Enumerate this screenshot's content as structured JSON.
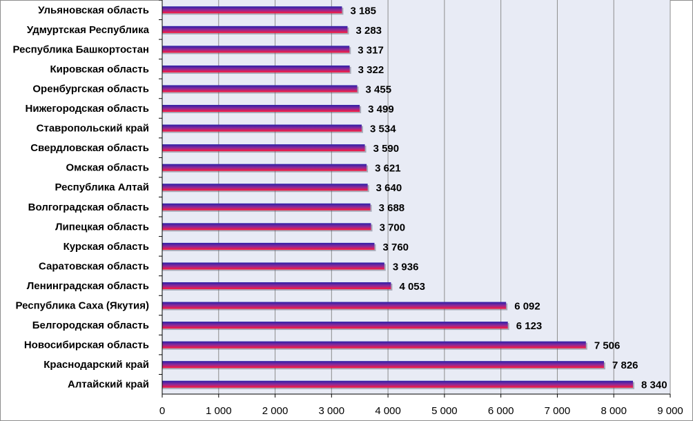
{
  "chart_data": {
    "type": "bar",
    "orientation": "horizontal",
    "categories": [
      "Ульяновская область",
      "Удмуртская Республика",
      "Республика Башкортостан",
      "Кировская область",
      "Оренбургская область",
      "Нижегородская область",
      "Ставропольский край",
      "Свердловская область",
      "Омская область",
      "Республика Алтай",
      "Волгоградская область",
      "Липецкая область",
      "Курская область",
      "Саратовская область",
      "Ленинградская область",
      "Республика Саха (Якутия)",
      "Белгородская область",
      "Новосибирская область",
      "Краснодарский край",
      "Алтайский край"
    ],
    "values": [
      3185,
      3283,
      3317,
      3322,
      3455,
      3499,
      3534,
      3590,
      3621,
      3640,
      3688,
      3700,
      3760,
      3936,
      4053,
      6092,
      6123,
      7506,
      7826,
      8340
    ],
    "value_labels": [
      "3 185",
      "3 283",
      "3 317",
      "3 322",
      "3 455",
      "3 499",
      "3 534",
      "3 590",
      "3 621",
      "3 640",
      "3 688",
      "3 700",
      "3 760",
      "3 936",
      "4 053",
      "6 092",
      "6 123",
      "7 506",
      "7 826",
      "8 340"
    ],
    "xlim": [
      0,
      9000
    ],
    "xticks": [
      0,
      1000,
      2000,
      3000,
      4000,
      5000,
      6000,
      7000,
      8000,
      9000
    ],
    "xtick_labels": [
      "0",
      "1 000",
      "2 000",
      "3 000",
      "4 000",
      "5 000",
      "6 000",
      "7 000",
      "8 000",
      "9 000"
    ],
    "grid": true,
    "colors": {
      "plot_background": "#e8ebf5",
      "gridline": "#8c8c8c",
      "bar_top": "#2a1fa8",
      "bar_mid": "#8a2a9a",
      "bar_bottom": "#ff1a3c"
    }
  }
}
